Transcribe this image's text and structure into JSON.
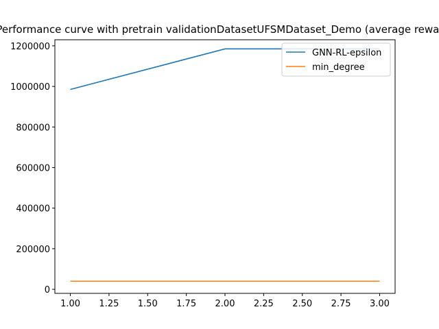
{
  "chart_data": {
    "type": "line",
    "title": "Performance curve with pretrain validationDatasetUFSMDataset_Demo (average reward)",
    "xlabel": "",
    "ylabel": "",
    "xlim": [
      0.9,
      3.1
    ],
    "ylim": [
      -20000,
      1230000
    ],
    "xticks": [
      1.0,
      1.25,
      1.5,
      1.75,
      2.0,
      2.25,
      2.5,
      2.75,
      3.0
    ],
    "xtick_labels": [
      "1.00",
      "1.25",
      "1.50",
      "1.75",
      "2.00",
      "2.25",
      "2.50",
      "2.75",
      "3.00"
    ],
    "yticks": [
      0,
      200000,
      400000,
      600000,
      800000,
      1000000,
      1200000
    ],
    "ytick_labels": [
      "0",
      "200000",
      "400000",
      "600000",
      "800000",
      "1000000",
      "1200000"
    ],
    "grid": false,
    "legend_position": "top-right",
    "series": [
      {
        "name": "GNN-RL-epsilon",
        "color": "#1f77b4",
        "x": [
          1,
          2,
          3
        ],
        "y": [
          985000,
          1185000,
          1185000
        ]
      },
      {
        "name": "min_degree",
        "color": "#ff7f0e",
        "x": [
          1,
          2,
          3
        ],
        "y": [
          40000,
          40000,
          40000
        ]
      }
    ]
  }
}
